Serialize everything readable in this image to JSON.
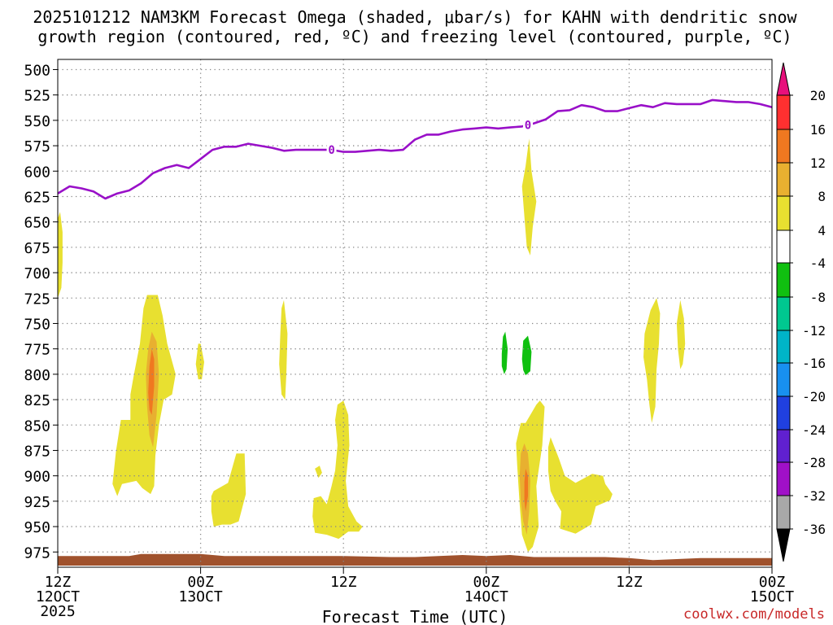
{
  "chart_data": {
    "type": "contour",
    "title_line1": "2025101212 NAM3KM Forecast Omega (shaded, μbar/s) for KAHN with dendritic snow",
    "title_line2": "growth region (contoured, red, ºC) and freezing level (contoured, purple, ºC)",
    "xlabel": "Forecast Time (UTC)",
    "x_range_hours": [
      0,
      60
    ],
    "y_range_hpa": [
      490,
      990
    ],
    "y_scale": "linear, pressure decreasing upward",
    "grid": true,
    "y_ticks": [
      500,
      525,
      550,
      575,
      600,
      625,
      650,
      675,
      700,
      725,
      750,
      775,
      800,
      825,
      850,
      875,
      900,
      925,
      950,
      975
    ],
    "x_ticks": [
      {
        "hour": 0,
        "label": "12Z",
        "sub": "12OCT",
        "sub2": "2025"
      },
      {
        "hour": 12,
        "label": "00Z",
        "sub": "13OCT",
        "sub2": ""
      },
      {
        "hour": 24,
        "label": "12Z",
        "sub": "",
        "sub2": ""
      },
      {
        "hour": 36,
        "label": "00Z",
        "sub": "14OCT",
        "sub2": ""
      },
      {
        "hour": 48,
        "label": "12Z",
        "sub": "",
        "sub2": ""
      },
      {
        "hour": 60,
        "label": "00Z",
        "sub": "15OCT",
        "sub2": ""
      }
    ],
    "colorbar": {
      "labels": [
        "20",
        "16",
        "12",
        "8",
        "4",
        "-4",
        "-8",
        "-12",
        "-16",
        "-20",
        "-24",
        "-28",
        "-32",
        "-36"
      ],
      "bins": [
        {
          "color": "#ff3030",
          "label_index": 1
        },
        {
          "color": "#f07820",
          "label_index": 2
        },
        {
          "color": "#e8b030",
          "label_index": 3
        },
        {
          "color": "#e8e030",
          "label_index": 4
        },
        {
          "color": "#ffffff",
          "label_index": 5
        },
        {
          "color": "#10c010",
          "label_index": 6
        },
        {
          "color": "#00c890",
          "label_index": 7
        },
        {
          "color": "#00b4c8",
          "label_index": 8
        },
        {
          "color": "#1890f0",
          "label_index": 9
        },
        {
          "color": "#2040e0",
          "label_index": 10
        },
        {
          "color": "#6020d0",
          "label_index": 11
        },
        {
          "color": "#a010c8",
          "label_index": 12
        },
        {
          "color": "#a8a8a8",
          "label_index": 13
        }
      ],
      "top_color": "#e8107c",
      "bottom_color": "#000000"
    },
    "freezing_level": {
      "color": "#9910c8",
      "contour_label": "0",
      "label_hours": [
        23.0,
        39.5
      ],
      "hours": [
        0,
        1,
        2,
        3,
        4,
        5,
        6,
        7,
        8,
        9,
        10,
        11,
        12,
        13,
        14,
        15,
        16,
        17,
        18,
        19,
        20,
        21,
        22,
        23,
        24,
        25,
        26,
        27,
        28,
        29,
        30,
        31,
        32,
        33,
        34,
        35,
        36,
        37,
        38,
        39,
        40,
        41,
        42,
        43,
        44,
        45,
        46,
        47,
        48,
        49,
        50,
        51,
        52,
        53,
        54,
        55,
        56,
        57,
        58,
        59,
        60
      ],
      "pressure_hpa": [
        622,
        615,
        617,
        620,
        627,
        622,
        619,
        612,
        602,
        597,
        594,
        597,
        588,
        579,
        576,
        576,
        573,
        575,
        577,
        580,
        579,
        579,
        579,
        579,
        581,
        581,
        580,
        579,
        580,
        579,
        569,
        564,
        564,
        561,
        559,
        558,
        557,
        558,
        557,
        556,
        553,
        549,
        541,
        540,
        535,
        537,
        541,
        541,
        538,
        535,
        537,
        533,
        534,
        534,
        534,
        530,
        531,
        532,
        532,
        534,
        537
      ]
    },
    "omega_regions": [
      {
        "name": "omega-early-column",
        "color": "#e8e030",
        "points": [
          [
            0,
            647
          ],
          [
            0.2,
            640
          ],
          [
            0.4,
            660
          ],
          [
            0.4,
            690
          ],
          [
            0.3,
            715
          ],
          [
            0,
            725
          ]
        ]
      },
      {
        "name": "omega-main-13oct",
        "color": "#e8e030",
        "points": [
          [
            4.6,
            908
          ],
          [
            4.9,
            875
          ],
          [
            5.3,
            845
          ],
          [
            6.1,
            845
          ],
          [
            6.1,
            820
          ],
          [
            6.4,
            800
          ],
          [
            6.9,
            770
          ],
          [
            7.2,
            735
          ],
          [
            7.5,
            722
          ],
          [
            8.4,
            722
          ],
          [
            8.8,
            742
          ],
          [
            9.2,
            770
          ],
          [
            9.9,
            800
          ],
          [
            9.6,
            820
          ],
          [
            8.9,
            825
          ],
          [
            8.5,
            850
          ],
          [
            8.2,
            880
          ],
          [
            8.1,
            910
          ],
          [
            7.8,
            918
          ],
          [
            7.1,
            912
          ],
          [
            6.6,
            905
          ],
          [
            5.4,
            908
          ],
          [
            5.0,
            920
          ]
        ]
      },
      {
        "name": "omega-main-13oct-core",
        "color": "#e8b030",
        "points": [
          [
            7.5,
            832
          ],
          [
            7.4,
            800
          ],
          [
            7.6,
            775
          ],
          [
            7.9,
            758
          ],
          [
            8.3,
            768
          ],
          [
            8.5,
            800
          ],
          [
            8.3,
            840
          ],
          [
            8.0,
            872
          ],
          [
            7.7,
            860
          ]
        ]
      },
      {
        "name": "omega-main-13oct-max",
        "color": "#f07820",
        "points": [
          [
            7.6,
            818
          ],
          [
            7.7,
            792
          ],
          [
            7.9,
            775
          ],
          [
            8.1,
            785
          ],
          [
            8.1,
            812
          ],
          [
            7.9,
            840
          ],
          [
            7.7,
            835
          ]
        ]
      },
      {
        "name": "omega-small-00z13",
        "color": "#e8e030",
        "points": [
          [
            11.6,
            790
          ],
          [
            11.8,
            770
          ],
          [
            12.0,
            770
          ],
          [
            12.3,
            788
          ],
          [
            12.1,
            805
          ],
          [
            11.8,
            805
          ]
        ]
      },
      {
        "name": "omega-low-00z13",
        "color": "#e8e030",
        "points": [
          [
            12.9,
            920
          ],
          [
            13.1,
            915
          ],
          [
            14.3,
            907
          ],
          [
            15.0,
            878
          ],
          [
            15.7,
            878
          ],
          [
            15.8,
            918
          ],
          [
            15.2,
            945
          ],
          [
            14.5,
            948
          ],
          [
            13.8,
            948
          ],
          [
            13.1,
            950
          ],
          [
            12.9,
            935
          ]
        ]
      },
      {
        "name": "omega-thin-col-06z",
        "color": "#e8e030",
        "points": [
          [
            18.8,
            735
          ],
          [
            19.0,
            727
          ],
          [
            19.3,
            760
          ],
          [
            19.2,
            800
          ],
          [
            19.1,
            825
          ],
          [
            18.8,
            820
          ],
          [
            18.6,
            790
          ],
          [
            18.7,
            760
          ]
        ]
      },
      {
        "name": "omega-low-12z13",
        "color": "#e8e030",
        "points": [
          [
            21.5,
            922
          ],
          [
            22.1,
            920
          ],
          [
            22.6,
            928
          ],
          [
            23.0,
            910
          ],
          [
            23.3,
            895
          ],
          [
            23.5,
            870
          ],
          [
            23.3,
            845
          ],
          [
            23.5,
            830
          ],
          [
            24.0,
            826
          ],
          [
            24.4,
            840
          ],
          [
            24.5,
            870
          ],
          [
            24.2,
            905
          ],
          [
            24.4,
            930
          ],
          [
            25.1,
            945
          ],
          [
            25.6,
            950
          ],
          [
            25.3,
            955
          ],
          [
            24.4,
            955
          ],
          [
            23.6,
            962
          ],
          [
            22.6,
            958
          ],
          [
            21.6,
            956
          ],
          [
            21.4,
            940
          ]
        ]
      },
      {
        "name": "omega-low-12z13-dot",
        "color": "#e8e030",
        "points": [
          [
            21.6,
            893
          ],
          [
            22.0,
            890
          ],
          [
            22.2,
            897
          ],
          [
            21.9,
            902
          ]
        ]
      },
      {
        "name": "omega-upper-thin-14oct",
        "color": "#e8e030",
        "points": [
          [
            39.0,
            615
          ],
          [
            39.3,
            595
          ],
          [
            39.6,
            568
          ],
          [
            39.8,
            600
          ],
          [
            40.2,
            630
          ],
          [
            39.9,
            655
          ],
          [
            39.7,
            683
          ],
          [
            39.4,
            675
          ]
        ]
      },
      {
        "name": "omega-low-14oct",
        "color": "#e8e030",
        "points": [
          [
            38.6,
            890
          ],
          [
            38.5,
            868
          ],
          [
            38.9,
            848
          ],
          [
            39.3,
            848
          ],
          [
            40.2,
            830
          ],
          [
            40.5,
            826
          ],
          [
            40.9,
            832
          ],
          [
            40.7,
            870
          ],
          [
            40.2,
            910
          ],
          [
            40.4,
            950
          ],
          [
            39.9,
            970
          ],
          [
            39.5,
            975
          ],
          [
            39.0,
            958
          ],
          [
            38.8,
            928
          ]
        ]
      },
      {
        "name": "omega-low-14oct-core",
        "color": "#e8b030",
        "points": [
          [
            38.8,
            900
          ],
          [
            38.9,
            878
          ],
          [
            39.2,
            868
          ],
          [
            39.5,
            878
          ],
          [
            39.7,
            905
          ],
          [
            39.6,
            935
          ],
          [
            39.4,
            958
          ],
          [
            39.1,
            945
          ],
          [
            38.9,
            925
          ]
        ]
      },
      {
        "name": "omega-low-14oct-max",
        "color": "#f07820",
        "points": [
          [
            39.2,
            906
          ],
          [
            39.3,
            893
          ],
          [
            39.5,
            900
          ],
          [
            39.5,
            920
          ],
          [
            39.3,
            935
          ],
          [
            39.2,
            924
          ]
        ]
      },
      {
        "name": "omega-low-15z14",
        "color": "#e8e030",
        "points": [
          [
            41.2,
            872
          ],
          [
            41.4,
            862
          ],
          [
            42.1,
            883
          ],
          [
            42.6,
            900
          ],
          [
            43.5,
            907
          ],
          [
            44.9,
            898
          ],
          [
            45.8,
            900
          ],
          [
            46.0,
            908
          ],
          [
            46.6,
            918
          ],
          [
            46.4,
            924
          ],
          [
            45.2,
            930
          ],
          [
            44.8,
            948
          ],
          [
            43.5,
            957
          ],
          [
            42.2,
            952
          ],
          [
            42.3,
            935
          ],
          [
            41.8,
            925
          ],
          [
            41.4,
            915
          ],
          [
            41.2,
            895
          ]
        ]
      },
      {
        "name": "omega-mid-13z15",
        "color": "#e8e030",
        "points": [
          [
            49.2,
            783
          ],
          [
            49.3,
            760
          ],
          [
            49.8,
            737
          ],
          [
            50.3,
            725
          ],
          [
            50.6,
            740
          ],
          [
            50.5,
            770
          ],
          [
            50.3,
            795
          ],
          [
            50.2,
            832
          ],
          [
            49.9,
            848
          ],
          [
            49.7,
            830
          ],
          [
            49.5,
            805
          ]
        ]
      },
      {
        "name": "omega-mid-18z15",
        "color": "#e8e030",
        "points": [
          [
            52.0,
            750
          ],
          [
            52.3,
            727
          ],
          [
            52.6,
            745
          ],
          [
            52.7,
            770
          ],
          [
            52.5,
            790
          ],
          [
            52.3,
            795
          ],
          [
            52.1,
            775
          ]
        ]
      },
      {
        "name": "omega-neg-a",
        "color": "#10c010",
        "points": [
          [
            37.3,
            780
          ],
          [
            37.4,
            763
          ],
          [
            37.6,
            758
          ],
          [
            37.8,
            775
          ],
          [
            37.7,
            795
          ],
          [
            37.5,
            800
          ],
          [
            37.3,
            792
          ]
        ]
      },
      {
        "name": "omega-neg-b",
        "color": "#10c010",
        "points": [
          [
            39.0,
            785
          ],
          [
            39.1,
            767
          ],
          [
            39.5,
            762
          ],
          [
            39.8,
            778
          ],
          [
            39.7,
            797
          ],
          [
            39.3,
            801
          ],
          [
            39.1,
            796
          ]
        ]
      }
    ],
    "terrain": {
      "color": "#a0522d",
      "hours": [
        0,
        6,
        7,
        12,
        14,
        24,
        28,
        30,
        32,
        34,
        36,
        38,
        40,
        46,
        48,
        50,
        52,
        54,
        60
      ],
      "pressure_hpa": [
        979,
        979,
        977,
        977,
        979,
        979,
        980,
        980,
        979,
        978,
        979,
        978,
        980,
        980,
        981,
        983,
        982,
        981,
        981
      ]
    }
  },
  "credit": "coolwx.com/models",
  "colors": {
    "credit": "#c82828",
    "grid": "#888888",
    "axis": "#000000"
  }
}
